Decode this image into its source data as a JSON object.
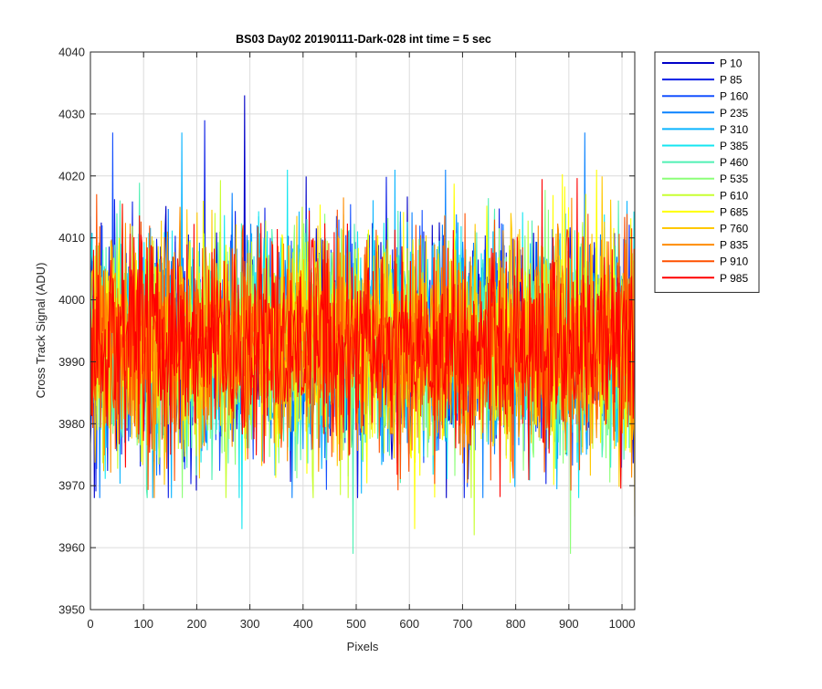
{
  "chart_data": {
    "type": "line",
    "title": "BS03 Day02 20190111-Dark-028 int time = 5 sec",
    "xlabel": "Pixels",
    "ylabel": "Cross Track Signal (ADU)",
    "xlim": [
      0,
      1024
    ],
    "ylim": [
      3950,
      4040
    ],
    "xticks": [
      0,
      100,
      200,
      300,
      400,
      500,
      600,
      700,
      800,
      900,
      1000
    ],
    "yticks": [
      3950,
      3960,
      3970,
      3980,
      3990,
      4000,
      4010,
      4020,
      4030,
      4040
    ],
    "grid": true,
    "legend_position": "outside-top-right",
    "series": [
      {
        "name": "P 10",
        "color": "#0000c8"
      },
      {
        "name": "P 85",
        "color": "#0a1ee6"
      },
      {
        "name": "P 160",
        "color": "#1450ff"
      },
      {
        "name": "P 235",
        "color": "#0a82ff"
      },
      {
        "name": "P 310",
        "color": "#0ab4ff"
      },
      {
        "name": "P 385",
        "color": "#14e6f0"
      },
      {
        "name": "P 460",
        "color": "#50f0b4"
      },
      {
        "name": "P 535",
        "color": "#8cff78"
      },
      {
        "name": "P 610",
        "color": "#c8ff32"
      },
      {
        "name": "P 685",
        "color": "#ffff00"
      },
      {
        "name": "P 760",
        "color": "#ffc800"
      },
      {
        "name": "P 835",
        "color": "#ff8c00"
      },
      {
        "name": "P 910",
        "color": "#ff5000"
      },
      {
        "name": "P 985",
        "color": "#ff0000"
      }
    ],
    "signal_summary": {
      "mean": 3993,
      "typical_min": 3970,
      "typical_max": 4020
    },
    "annotated_extremes": [
      {
        "x": 290,
        "y": 4033
      },
      {
        "x": 215,
        "y": 4029
      },
      {
        "x": 42,
        "y": 4027
      },
      {
        "x": 930,
        "y": 4027
      },
      {
        "x": 172,
        "y": 4027
      },
      {
        "x": 285,
        "y": 3963
      },
      {
        "x": 494,
        "y": 3959
      },
      {
        "x": 903,
        "y": 3959
      },
      {
        "x": 722,
        "y": 3962
      },
      {
        "x": 610,
        "y": 3963
      },
      {
        "x": 1024,
        "y": 3965
      }
    ]
  }
}
